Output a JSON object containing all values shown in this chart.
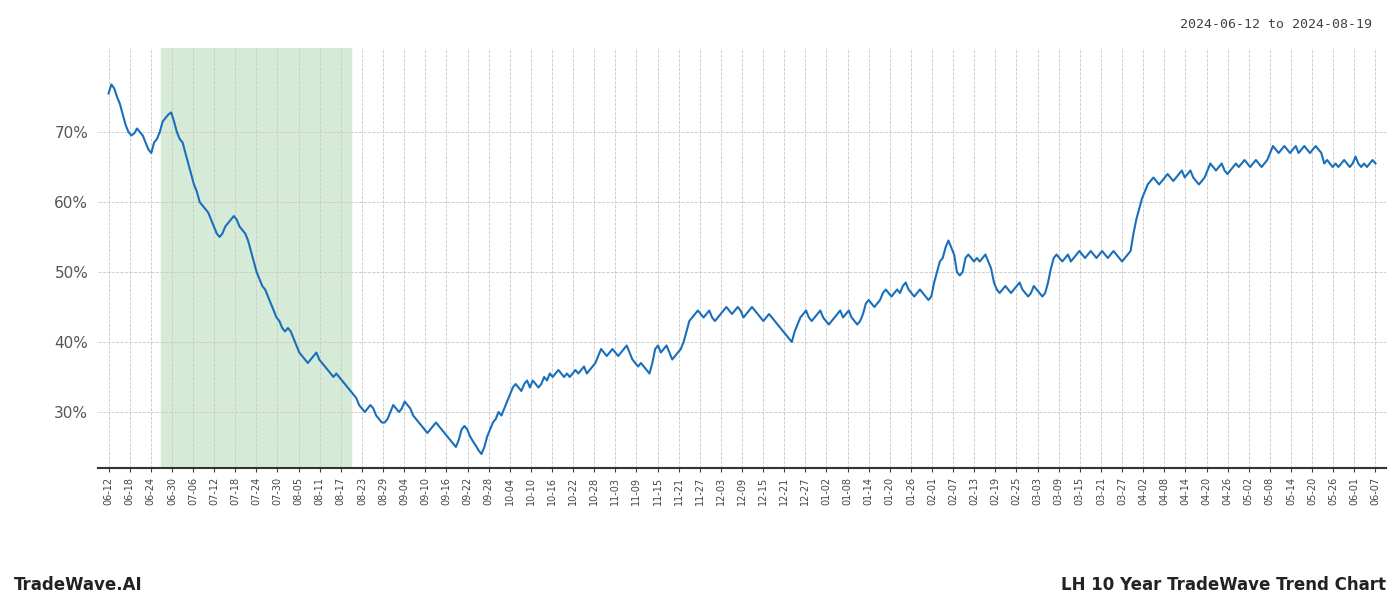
{
  "title_right": "2024-06-12 to 2024-08-19",
  "footer_left": "TradeWave.AI",
  "footer_right": "LH 10 Year TradeWave Trend Chart",
  "highlight_color": "#d6ead8",
  "line_color": "#1a6fba",
  "line_width": 1.5,
  "background_color": "#ffffff",
  "grid_color": "#c8c8c8",
  "ylabel_color": "#555555",
  "ylim": [
    22,
    82
  ],
  "yticks": [
    30,
    40,
    50,
    60,
    70
  ],
  "x_labels": [
    "06-12",
    "06-18",
    "06-24",
    "06-30",
    "07-06",
    "07-12",
    "07-18",
    "07-24",
    "07-30",
    "08-05",
    "08-11",
    "08-17",
    "08-23",
    "08-29",
    "09-04",
    "09-10",
    "09-16",
    "09-22",
    "09-28",
    "10-04",
    "10-10",
    "10-16",
    "10-22",
    "10-28",
    "11-03",
    "11-09",
    "11-15",
    "11-21",
    "11-27",
    "12-03",
    "12-09",
    "12-15",
    "12-21",
    "12-27",
    "01-02",
    "01-08",
    "01-14",
    "01-20",
    "01-26",
    "02-01",
    "02-07",
    "02-13",
    "02-19",
    "02-25",
    "03-03",
    "03-09",
    "03-15",
    "03-21",
    "03-27",
    "04-02",
    "04-08",
    "04-14",
    "04-20",
    "04-26",
    "05-02",
    "05-08",
    "05-14",
    "05-20",
    "05-26",
    "06-01",
    "06-07"
  ],
  "highlight_start_label": "06-30",
  "highlight_end_label": "08-17",
  "values": [
    75.5,
    76.8,
    76.2,
    75.0,
    74.0,
    72.5,
    71.0,
    70.0,
    69.5,
    69.8,
    70.5,
    70.0,
    69.5,
    68.5,
    67.5,
    67.0,
    68.5,
    69.0,
    70.0,
    71.5,
    72.0,
    72.5,
    72.8,
    71.5,
    70.0,
    69.0,
    68.5,
    67.0,
    65.5,
    64.0,
    62.5,
    61.5,
    60.0,
    59.5,
    59.0,
    58.5,
    57.5,
    56.5,
    55.5,
    55.0,
    55.5,
    56.5,
    57.0,
    57.5,
    58.0,
    57.5,
    56.5,
    56.0,
    55.5,
    54.5,
    53.0,
    51.5,
    50.0,
    49.0,
    48.0,
    47.5,
    46.5,
    45.5,
    44.5,
    43.5,
    43.0,
    42.0,
    41.5,
    42.0,
    41.5,
    40.5,
    39.5,
    38.5,
    38.0,
    37.5,
    37.0,
    37.5,
    38.0,
    38.5,
    37.5,
    37.0,
    36.5,
    36.0,
    35.5,
    35.0,
    35.5,
    35.0,
    34.5,
    34.0,
    33.5,
    33.0,
    32.5,
    32.0,
    31.0,
    30.5,
    30.0,
    30.5,
    31.0,
    30.5,
    29.5,
    29.0,
    28.5,
    28.5,
    29.0,
    30.0,
    31.0,
    30.5,
    30.0,
    30.5,
    31.5,
    31.0,
    30.5,
    29.5,
    29.0,
    28.5,
    28.0,
    27.5,
    27.0,
    27.5,
    28.0,
    28.5,
    28.0,
    27.5,
    27.0,
    26.5,
    26.0,
    25.5,
    25.0,
    26.0,
    27.5,
    28.0,
    27.5,
    26.5,
    25.8,
    25.2,
    24.5,
    24.0,
    25.0,
    26.5,
    27.5,
    28.5,
    29.0,
    30.0,
    29.5,
    30.5,
    31.5,
    32.5,
    33.5,
    34.0,
    33.5,
    33.0,
    34.0,
    34.5,
    33.5,
    34.5,
    34.0,
    33.5,
    34.0,
    35.0,
    34.5,
    35.5,
    35.0,
    35.5,
    36.0,
    35.5,
    35.0,
    35.5,
    35.0,
    35.5,
    36.0,
    35.5,
    36.0,
    36.5,
    35.5,
    36.0,
    36.5,
    37.0,
    38.0,
    39.0,
    38.5,
    38.0,
    38.5,
    39.0,
    38.5,
    38.0,
    38.5,
    39.0,
    39.5,
    38.5,
    37.5,
    37.0,
    36.5,
    37.0,
    36.5,
    36.0,
    35.5,
    37.0,
    39.0,
    39.5,
    38.5,
    39.0,
    39.5,
    38.5,
    37.5,
    38.0,
    38.5,
    39.0,
    40.0,
    41.5,
    43.0,
    43.5,
    44.0,
    44.5,
    44.0,
    43.5,
    44.0,
    44.5,
    43.5,
    43.0,
    43.5,
    44.0,
    44.5,
    45.0,
    44.5,
    44.0,
    44.5,
    45.0,
    44.5,
    43.5,
    44.0,
    44.5,
    45.0,
    44.5,
    44.0,
    43.5,
    43.0,
    43.5,
    44.0,
    43.5,
    43.0,
    42.5,
    42.0,
    41.5,
    41.0,
    40.5,
    40.0,
    41.5,
    42.5,
    43.5,
    44.0,
    44.5,
    43.5,
    43.0,
    43.5,
    44.0,
    44.5,
    43.5,
    43.0,
    42.5,
    43.0,
    43.5,
    44.0,
    44.5,
    43.5,
    44.0,
    44.5,
    43.5,
    43.0,
    42.5,
    43.0,
    44.0,
    45.5,
    46.0,
    45.5,
    45.0,
    45.5,
    46.0,
    47.0,
    47.5,
    47.0,
    46.5,
    47.0,
    47.5,
    47.0,
    48.0,
    48.5,
    47.5,
    47.0,
    46.5,
    47.0,
    47.5,
    47.0,
    46.5,
    46.0,
    46.5,
    48.5,
    50.0,
    51.5,
    52.0,
    53.5,
    54.5,
    53.5,
    52.5,
    50.0,
    49.5,
    50.0,
    52.0,
    52.5,
    52.0,
    51.5,
    52.0,
    51.5,
    52.0,
    52.5,
    51.5,
    50.5,
    48.5,
    47.5,
    47.0,
    47.5,
    48.0,
    47.5,
    47.0,
    47.5,
    48.0,
    48.5,
    47.5,
    47.0,
    46.5,
    47.0,
    48.0,
    47.5,
    47.0,
    46.5,
    47.0,
    48.5,
    50.5,
    52.0,
    52.5,
    52.0,
    51.5,
    52.0,
    52.5,
    51.5,
    52.0,
    52.5,
    53.0,
    52.5,
    52.0,
    52.5,
    53.0,
    52.5,
    52.0,
    52.5,
    53.0,
    52.5,
    52.0,
    52.5,
    53.0,
    52.5,
    52.0,
    51.5,
    52.0,
    52.5,
    53.0,
    55.5,
    57.5,
    59.0,
    60.5,
    61.5,
    62.5,
    63.0,
    63.5,
    63.0,
    62.5,
    63.0,
    63.5,
    64.0,
    63.5,
    63.0,
    63.5,
    64.0,
    64.5,
    63.5,
    64.0,
    64.5,
    63.5,
    63.0,
    62.5,
    63.0,
    63.5,
    64.5,
    65.5,
    65.0,
    64.5,
    65.0,
    65.5,
    64.5,
    64.0,
    64.5,
    65.0,
    65.5,
    65.0,
    65.5,
    66.0,
    65.5,
    65.0,
    65.5,
    66.0,
    65.5,
    65.0,
    65.5,
    66.0,
    67.0,
    68.0,
    67.5,
    67.0,
    67.5,
    68.0,
    67.5,
    67.0,
    67.5,
    68.0,
    67.0,
    67.5,
    68.0,
    67.5,
    67.0,
    67.5,
    68.0,
    67.5,
    67.0,
    65.5,
    66.0,
    65.5,
    65.0,
    65.5,
    65.0,
    65.5,
    66.0,
    65.5,
    65.0,
    65.5,
    66.5,
    65.5,
    65.0,
    65.5,
    65.0,
    65.5,
    66.0,
    65.5
  ]
}
